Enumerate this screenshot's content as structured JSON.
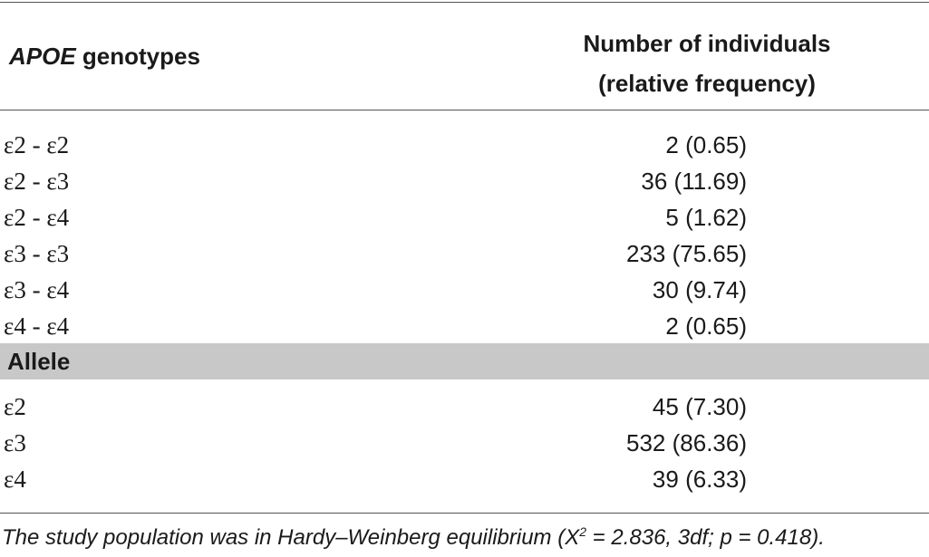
{
  "header": {
    "col1_italic": "APOE",
    "col1_rest": " genotypes",
    "col2_line1": "Number of individuals",
    "col2_line2": "(relative frequency)"
  },
  "genotypes": [
    {
      "label": "ε2 - ε2",
      "value": "2 (0.65)"
    },
    {
      "label": "ε2 - ε3",
      "value": "36 (11.69)"
    },
    {
      "label": "ε2 - ε4",
      "value": "5 (1.62)"
    },
    {
      "label": "ε3 - ε3",
      "value": "233 (75.65)"
    },
    {
      "label": "ε3 - ε4",
      "value": "30 (9.74)"
    },
    {
      "label": "ε4 - ε4",
      "value": "2 (0.65)"
    }
  ],
  "allele_section": {
    "title": "Allele"
  },
  "alleles": [
    {
      "label": "ε2",
      "value": "45 (7.30)"
    },
    {
      "label": "ε3",
      "value": "532 (86.36)"
    },
    {
      "label": "ε4",
      "value": "39 (6.33)"
    }
  ],
  "footnote": {
    "part1": "The study population was in Hardy–Weinberg equilibrium (X",
    "sup": "2",
    "part2": " = 2.836, 3df; p = 0.418)."
  }
}
